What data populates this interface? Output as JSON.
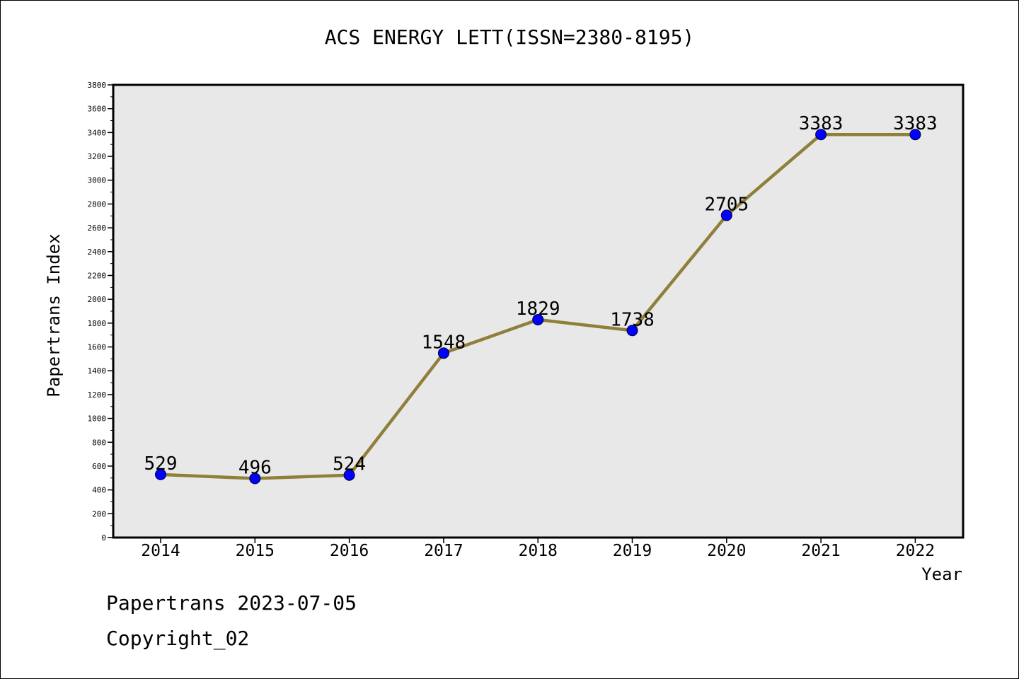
{
  "chart_data": {
    "type": "line",
    "title": "ACS ENERGY LETT(ISSN=2380-8195)",
    "xlabel": "Year",
    "ylabel": "Papertrans Index",
    "x": [
      "2014",
      "2015",
      "2016",
      "2017",
      "2018",
      "2019",
      "2020",
      "2021",
      "2022"
    ],
    "values": [
      529,
      496,
      524,
      1548,
      1829,
      1738,
      2705,
      3383,
      3383
    ],
    "data_labels": [
      "529",
      "496",
      "524",
      "1548",
      "1829",
      "1738",
      "2705",
      "3383",
      "3383"
    ],
    "ylim": [
      0,
      3800
    ],
    "yticks": [
      "0",
      "200",
      "400",
      "600",
      "800",
      "1000",
      "1200",
      "1400",
      "1600",
      "1800",
      "2000",
      "2200",
      "2400",
      "2600",
      "2800",
      "3000",
      "3200",
      "3400",
      "3600",
      "3800"
    ],
    "grid": false,
    "colors": {
      "line": "#8f7f3a",
      "marker": "#0000ff",
      "plot_bg": "#e8e8e8"
    }
  },
  "footer": {
    "line1": "Papertrans 2023-07-05",
    "line2": "Copyright_02"
  }
}
